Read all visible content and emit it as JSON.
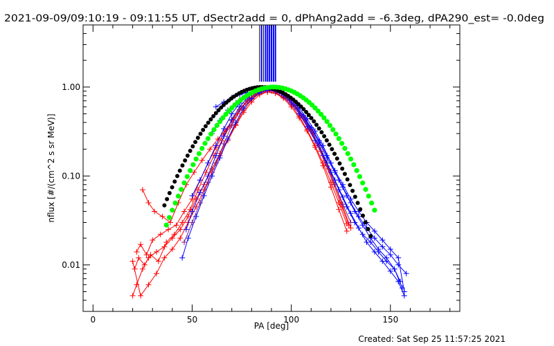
{
  "chart_data": {
    "type": "scatter",
    "title": "2021-09-09/09:10:19 - 09:11:55 UT, dSectr2add = 0, dPhAng2add = -6.3deg, dPA290_est= -0.0deg",
    "xlabel": "PA [deg]",
    "ylabel": "nflux [#/(cm^2 s sr MeV)]",
    "footer": "Created: Sat Sep 25 11:57:25 2021",
    "xlim": [
      -5,
      185
    ],
    "ylim": [
      0.003,
      5.0
    ],
    "yscale": "log",
    "x_ticks": [
      0,
      50,
      100,
      150
    ],
    "y_ticks": [
      {
        "value": 0.01,
        "label": "0.01"
      },
      {
        "value": 0.1,
        "label": "0.10"
      },
      {
        "value": 1.0,
        "label": "1.00"
      }
    ],
    "colors": {
      "red": "#ff0000",
      "blue": "#0000ff",
      "black": "#000000",
      "green": "#00ff00",
      "purple": "#7a1a8a"
    },
    "vertical_markers": {
      "black": [
        84,
        86
      ],
      "blue": [
        85,
        87,
        88,
        89,
        90,
        91,
        92
      ],
      "from_y": 1.15,
      "to_y": 5.0
    },
    "series": [
      {
        "color": "red",
        "points": [
          [
            20,
            0.0045
          ],
          [
            22,
            0.006
          ],
          [
            25,
            0.009
          ],
          [
            28,
            0.012
          ],
          [
            32,
            0.014
          ],
          [
            36,
            0.016
          ],
          [
            40,
            0.02
          ],
          [
            44,
            0.025
          ],
          [
            48,
            0.035
          ],
          [
            52,
            0.055
          ],
          [
            56,
            0.08
          ],
          [
            60,
            0.12
          ],
          [
            64,
            0.18
          ],
          [
            68,
            0.26
          ],
          [
            72,
            0.38
          ],
          [
            76,
            0.55
          ],
          [
            80,
            0.72
          ],
          [
            84,
            0.85
          ],
          [
            88,
            0.88
          ],
          [
            92,
            0.85
          ],
          [
            96,
            0.75
          ],
          [
            100,
            0.6
          ],
          [
            104,
            0.45
          ],
          [
            108,
            0.32
          ],
          [
            112,
            0.21
          ],
          [
            116,
            0.13
          ],
          [
            120,
            0.075
          ],
          [
            124,
            0.042
          ],
          [
            128,
            0.024
          ]
        ]
      },
      {
        "color": "red",
        "points": [
          [
            21,
            0.009
          ],
          [
            23,
            0.012
          ],
          [
            26,
            0.01
          ],
          [
            29,
            0.013
          ],
          [
            33,
            0.011
          ],
          [
            37,
            0.018
          ],
          [
            41,
            0.022
          ],
          [
            45,
            0.03
          ],
          [
            49,
            0.042
          ],
          [
            53,
            0.07
          ],
          [
            57,
            0.11
          ],
          [
            61,
            0.17
          ],
          [
            65,
            0.25
          ],
          [
            69,
            0.36
          ],
          [
            73,
            0.5
          ],
          [
            77,
            0.66
          ],
          [
            81,
            0.8
          ],
          [
            85,
            0.9
          ],
          [
            89,
            0.92
          ],
          [
            93,
            0.88
          ],
          [
            97,
            0.78
          ],
          [
            101,
            0.64
          ],
          [
            105,
            0.48
          ],
          [
            109,
            0.34
          ],
          [
            113,
            0.23
          ],
          [
            117,
            0.14
          ],
          [
            121,
            0.085
          ],
          [
            125,
            0.048
          ],
          [
            129,
            0.028
          ]
        ]
      },
      {
        "color": "red",
        "points": [
          [
            22,
            0.014
          ],
          [
            24,
            0.017
          ],
          [
            27,
            0.013
          ],
          [
            30,
            0.019
          ],
          [
            34,
            0.022
          ],
          [
            38,
            0.025
          ],
          [
            42,
            0.028
          ],
          [
            46,
            0.04
          ],
          [
            50,
            0.055
          ],
          [
            54,
            0.09
          ],
          [
            58,
            0.14
          ],
          [
            62,
            0.21
          ],
          [
            66,
            0.3
          ],
          [
            70,
            0.42
          ],
          [
            74,
            0.56
          ],
          [
            78,
            0.7
          ],
          [
            82,
            0.83
          ],
          [
            86,
            0.9
          ],
          [
            90,
            0.9
          ],
          [
            94,
            0.86
          ],
          [
            98,
            0.76
          ],
          [
            102,
            0.62
          ],
          [
            106,
            0.47
          ],
          [
            110,
            0.33
          ],
          [
            114,
            0.22
          ],
          [
            118,
            0.14
          ],
          [
            122,
            0.08
          ],
          [
            126,
            0.045
          ],
          [
            130,
            0.026
          ]
        ]
      },
      {
        "color": "red",
        "points": [
          [
            25,
            0.07
          ],
          [
            28,
            0.05
          ],
          [
            31,
            0.04
          ],
          [
            35,
            0.035
          ],
          [
            39,
            0.03
          ],
          [
            43,
            0.05
          ],
          [
            47,
            0.08
          ],
          [
            51,
            0.11
          ],
          [
            55,
            0.15
          ],
          [
            59,
            0.2
          ],
          [
            63,
            0.26
          ],
          [
            67,
            0.33
          ],
          [
            71,
            0.45
          ],
          [
            75,
            0.6
          ],
          [
            79,
            0.75
          ],
          [
            83,
            0.86
          ],
          [
            87,
            0.93
          ],
          [
            91,
            0.92
          ],
          [
            95,
            0.84
          ],
          [
            99,
            0.72
          ],
          [
            103,
            0.58
          ],
          [
            107,
            0.43
          ],
          [
            111,
            0.3
          ],
          [
            115,
            0.19
          ],
          [
            119,
            0.12
          ]
        ]
      },
      {
        "color": "red",
        "points": [
          [
            20,
            0.011
          ],
          [
            24,
            0.0045
          ],
          [
            28,
            0.006
          ],
          [
            32,
            0.008
          ],
          [
            36,
            0.012
          ],
          [
            40,
            0.015
          ],
          [
            44,
            0.02
          ],
          [
            48,
            0.03
          ],
          [
            52,
            0.045
          ],
          [
            56,
            0.07
          ],
          [
            60,
            0.11
          ],
          [
            64,
            0.17
          ],
          [
            68,
            0.25
          ],
          [
            72,
            0.37
          ],
          [
            76,
            0.52
          ],
          [
            80,
            0.68
          ],
          [
            84,
            0.82
          ],
          [
            88,
            0.88
          ],
          [
            92,
            0.86
          ],
          [
            96,
            0.77
          ],
          [
            100,
            0.63
          ],
          [
            104,
            0.47
          ],
          [
            108,
            0.33
          ],
          [
            112,
            0.22
          ],
          [
            116,
            0.14
          ],
          [
            120,
            0.085
          ],
          [
            124,
            0.05
          ],
          [
            128,
            0.029
          ]
        ]
      },
      {
        "color": "blue",
        "points": [
          [
            45,
            0.012
          ],
          [
            48,
            0.02
          ],
          [
            52,
            0.035
          ],
          [
            56,
            0.06
          ],
          [
            60,
            0.1
          ],
          [
            64,
            0.16
          ],
          [
            68,
            0.26
          ],
          [
            72,
            0.4
          ],
          [
            76,
            0.58
          ],
          [
            80,
            0.74
          ],
          [
            84,
            0.86
          ],
          [
            88,
            0.92
          ],
          [
            92,
            0.9
          ],
          [
            96,
            0.8
          ],
          [
            100,
            0.66
          ],
          [
            104,
            0.5
          ],
          [
            108,
            0.36
          ],
          [
            112,
            0.25
          ],
          [
            116,
            0.17
          ],
          [
            120,
            0.11
          ],
          [
            124,
            0.07
          ],
          [
            128,
            0.045
          ],
          [
            132,
            0.03
          ],
          [
            136,
            0.022
          ],
          [
            140,
            0.018
          ],
          [
            144,
            0.014
          ],
          [
            148,
            0.011
          ],
          [
            152,
            0.009
          ],
          [
            156,
            0.0055
          ]
        ]
      },
      {
        "color": "blue",
        "points": [
          [
            47,
            0.025
          ],
          [
            50,
            0.04
          ],
          [
            54,
            0.065
          ],
          [
            58,
            0.1
          ],
          [
            62,
            0.17
          ],
          [
            66,
            0.28
          ],
          [
            70,
            0.43
          ],
          [
            74,
            0.6
          ],
          [
            78,
            0.76
          ],
          [
            82,
            0.88
          ],
          [
            86,
            0.94
          ],
          [
            90,
            0.93
          ],
          [
            94,
            0.86
          ],
          [
            98,
            0.74
          ],
          [
            102,
            0.6
          ],
          [
            106,
            0.46
          ],
          [
            110,
            0.34
          ],
          [
            114,
            0.24
          ],
          [
            118,
            0.16
          ],
          [
            122,
            0.11
          ],
          [
            126,
            0.075
          ],
          [
            130,
            0.05
          ],
          [
            134,
            0.035
          ],
          [
            138,
            0.026
          ],
          [
            142,
            0.02
          ],
          [
            146,
            0.016
          ],
          [
            150,
            0.013
          ],
          [
            154,
            0.01
          ],
          [
            158,
            0.008
          ]
        ]
      },
      {
        "color": "blue",
        "points": [
          [
            50,
            0.06
          ],
          [
            54,
            0.09
          ],
          [
            58,
            0.14
          ],
          [
            62,
            0.22
          ],
          [
            66,
            0.34
          ],
          [
            70,
            0.5
          ],
          [
            74,
            0.66
          ],
          [
            78,
            0.8
          ],
          [
            82,
            0.9
          ],
          [
            86,
            0.95
          ],
          [
            90,
            0.94
          ],
          [
            94,
            0.87
          ],
          [
            98,
            0.76
          ],
          [
            102,
            0.62
          ],
          [
            106,
            0.48
          ],
          [
            110,
            0.35
          ],
          [
            114,
            0.25
          ],
          [
            118,
            0.17
          ],
          [
            122,
            0.115
          ],
          [
            126,
            0.08
          ],
          [
            130,
            0.055
          ],
          [
            134,
            0.04
          ],
          [
            138,
            0.03
          ],
          [
            142,
            0.024
          ],
          [
            146,
            0.019
          ],
          [
            150,
            0.015
          ],
          [
            154,
            0.012
          ],
          [
            157,
            0.005
          ]
        ]
      },
      {
        "color": "blue",
        "points": [
          [
            60,
            0.3
          ],
          [
            64,
            0.42
          ],
          [
            68,
            0.55
          ],
          [
            72,
            0.66
          ],
          [
            76,
            0.76
          ],
          [
            80,
            0.84
          ],
          [
            84,
            0.9
          ],
          [
            88,
            0.94
          ],
          [
            92,
            0.92
          ],
          [
            96,
            0.85
          ],
          [
            100,
            0.73
          ],
          [
            104,
            0.58
          ],
          [
            108,
            0.44
          ],
          [
            112,
            0.32
          ],
          [
            116,
            0.22
          ],
          [
            120,
            0.14
          ],
          [
            124,
            0.09
          ],
          [
            128,
            0.06
          ],
          [
            132,
            0.04
          ],
          [
            136,
            0.028
          ],
          [
            140,
            0.02
          ],
          [
            144,
            0.015
          ],
          [
            148,
            0.012
          ],
          [
            152,
            0.009
          ],
          [
            155,
            0.0065
          ]
        ]
      },
      {
        "color": "blue",
        "points": [
          [
            62,
            0.6
          ],
          [
            66,
            0.68
          ],
          [
            70,
            0.76
          ],
          [
            74,
            0.82
          ],
          [
            78,
            0.87
          ],
          [
            82,
            0.9
          ],
          [
            86,
            0.93
          ],
          [
            90,
            0.92
          ],
          [
            94,
            0.86
          ],
          [
            98,
            0.74
          ],
          [
            102,
            0.6
          ],
          [
            106,
            0.45
          ],
          [
            110,
            0.32
          ],
          [
            114,
            0.22
          ],
          [
            118,
            0.14
          ],
          [
            122,
            0.09
          ],
          [
            126,
            0.058
          ],
          [
            130,
            0.038
          ],
          [
            134,
            0.026
          ],
          [
            138,
            0.018
          ],
          [
            142,
            0.014
          ],
          [
            146,
            0.011
          ],
          [
            150,
            0.0085
          ],
          [
            154,
            0.0065
          ],
          [
            157,
            0.0045
          ]
        ]
      },
      {
        "color": "purple",
        "points": [
          [
            46,
            0.018
          ],
          [
            50,
            0.03
          ],
          [
            54,
            0.05
          ],
          [
            58,
            0.085
          ],
          [
            62,
            0.14
          ],
          [
            66,
            0.23
          ],
          [
            70,
            0.37
          ],
          [
            74,
            0.55
          ],
          [
            78,
            0.72
          ],
          [
            82,
            0.85
          ],
          [
            86,
            0.93
          ],
          [
            90,
            0.93
          ],
          [
            94,
            0.86
          ],
          [
            98,
            0.74
          ],
          [
            102,
            0.6
          ],
          [
            106,
            0.45
          ],
          [
            110,
            0.32
          ],
          [
            114,
            0.21
          ],
          [
            118,
            0.13
          ],
          [
            122,
            0.08
          ],
          [
            126,
            0.048
          ],
          [
            130,
            0.03
          ]
        ]
      }
    ],
    "fit_curves": [
      {
        "color": "black",
        "peak_x": 85,
        "sigma": 19.8,
        "peak_y": 1.0,
        "x_range": [
          36,
          141
        ],
        "step": 1.3
      },
      {
        "color": "green",
        "peak_x": 91,
        "sigma": 20.2,
        "peak_y": 1.0,
        "x_range": [
          37,
          143
        ],
        "step": 1.5
      }
    ]
  }
}
